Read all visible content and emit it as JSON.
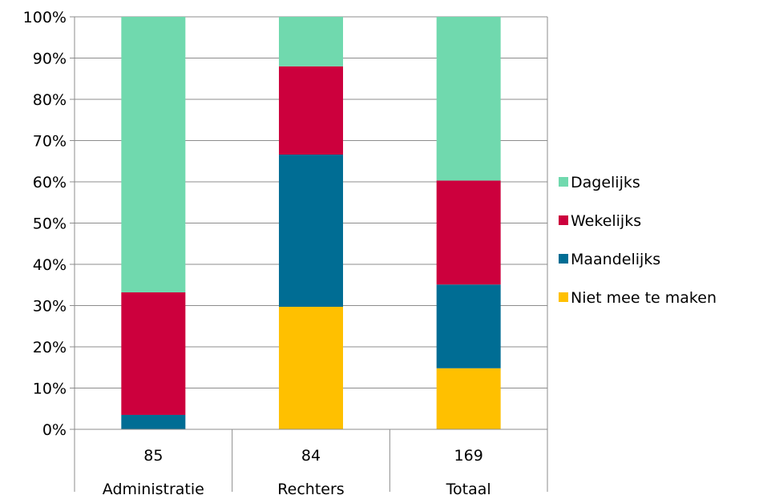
{
  "chart_data": {
    "type": "bar",
    "stacked": true,
    "percent": true,
    "categories": [
      {
        "count": "85",
        "name": "Administratie"
      },
      {
        "count": "84",
        "name": "Rechters"
      },
      {
        "count": "169",
        "name": "Totaal"
      }
    ],
    "series": [
      {
        "name": "Niet mee te maken",
        "color": "#FFC000",
        "values": [
          0,
          29.7,
          14.8
        ]
      },
      {
        "name": "Maandelijks",
        "color": "#006D94",
        "values": [
          3.5,
          36.9,
          20.3
        ]
      },
      {
        "name": "Wekelijks",
        "color": "#CC003D",
        "values": [
          29.7,
          21.4,
          25.2
        ]
      },
      {
        "name": "Dagelijks",
        "color": "#70D9AE",
        "values": [
          66.8,
          12.0,
          39.7
        ]
      }
    ],
    "y_ticks": [
      "0%",
      "10%",
      "20%",
      "30%",
      "40%",
      "50%",
      "60%",
      "70%",
      "80%",
      "90%",
      "100%"
    ],
    "ylim": [
      0,
      100
    ],
    "grid": true,
    "legend": "right",
    "legend_order": [
      "Dagelijks",
      "Wekelijks",
      "Maandelijks",
      "Niet mee te maken"
    ]
  }
}
